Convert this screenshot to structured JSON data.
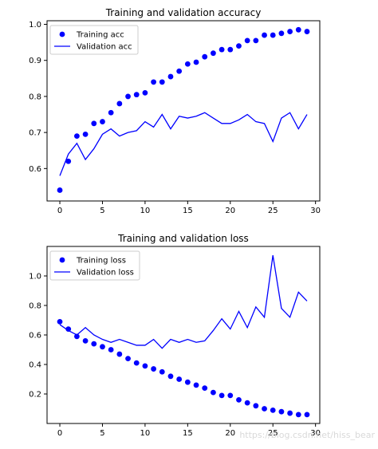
{
  "colors": {
    "series": "#0000ff"
  },
  "watermark": "https://blog.csdn.net/hiss_bear",
  "chart_data": [
    {
      "type": "scatter+line",
      "title": "Training and validation accuracy",
      "xlabel": "",
      "ylabel": "",
      "xlim": [
        -1.5,
        30.5
      ],
      "ylim": [
        0.51,
        1.01
      ],
      "xticks": [
        0,
        5,
        10,
        15,
        20,
        25,
        30
      ],
      "yticks": [
        0.6,
        0.7,
        0.8,
        0.9,
        1.0
      ],
      "ytick_labels": [
        "0.6",
        "0.7",
        "0.8",
        "0.9",
        "1.0"
      ],
      "grid": false,
      "legend": "upper left",
      "x": [
        0,
        1,
        2,
        3,
        4,
        5,
        6,
        7,
        8,
        9,
        10,
        11,
        12,
        13,
        14,
        15,
        16,
        17,
        18,
        19,
        20,
        21,
        22,
        23,
        24,
        25,
        26,
        27,
        28,
        29
      ],
      "series": [
        {
          "name": "Training acc",
          "style": "dots",
          "values": [
            0.54,
            0.62,
            0.69,
            0.695,
            0.725,
            0.73,
            0.755,
            0.78,
            0.8,
            0.805,
            0.81,
            0.84,
            0.84,
            0.855,
            0.87,
            0.89,
            0.895,
            0.91,
            0.92,
            0.93,
            0.93,
            0.94,
            0.955,
            0.955,
            0.97,
            0.97,
            0.975,
            0.98,
            0.985,
            0.98
          ]
        },
        {
          "name": "Validation acc",
          "style": "line",
          "values": [
            0.58,
            0.64,
            0.67,
            0.625,
            0.655,
            0.695,
            0.71,
            0.69,
            0.7,
            0.705,
            0.73,
            0.715,
            0.75,
            0.71,
            0.745,
            0.74,
            0.745,
            0.755,
            0.74,
            0.725,
            0.725,
            0.735,
            0.75,
            0.73,
            0.725,
            0.675,
            0.74,
            0.755,
            0.71,
            0.75
          ]
        }
      ]
    },
    {
      "type": "scatter+line",
      "title": "Training and validation loss",
      "xlabel": "",
      "ylabel": "",
      "xlim": [
        -1.5,
        30.5
      ],
      "ylim": [
        0.0,
        1.2
      ],
      "xticks": [
        0,
        5,
        10,
        15,
        20,
        25,
        30
      ],
      "yticks": [
        0.2,
        0.4,
        0.6,
        0.8,
        1.0
      ],
      "ytick_labels": [
        "0.2",
        "0.4",
        "0.6",
        "0.8",
        "1.0"
      ],
      "grid": false,
      "legend": "upper left",
      "x": [
        0,
        1,
        2,
        3,
        4,
        5,
        6,
        7,
        8,
        9,
        10,
        11,
        12,
        13,
        14,
        15,
        16,
        17,
        18,
        19,
        20,
        21,
        22,
        23,
        24,
        25,
        26,
        27,
        28,
        29
      ],
      "series": [
        {
          "name": "Training loss",
          "style": "dots",
          "values": [
            0.69,
            0.64,
            0.59,
            0.56,
            0.54,
            0.52,
            0.5,
            0.47,
            0.44,
            0.41,
            0.39,
            0.37,
            0.35,
            0.32,
            0.3,
            0.28,
            0.26,
            0.24,
            0.21,
            0.19,
            0.19,
            0.16,
            0.14,
            0.12,
            0.1,
            0.09,
            0.08,
            0.07,
            0.06,
            0.06
          ]
        },
        {
          "name": "Validation loss",
          "style": "line",
          "values": [
            0.67,
            0.63,
            0.6,
            0.65,
            0.6,
            0.57,
            0.55,
            0.57,
            0.55,
            0.53,
            0.53,
            0.57,
            0.51,
            0.57,
            0.55,
            0.57,
            0.55,
            0.56,
            0.63,
            0.71,
            0.64,
            0.76,
            0.65,
            0.79,
            0.72,
            1.14,
            0.78,
            0.72,
            0.89,
            0.83
          ]
        }
      ]
    }
  ]
}
